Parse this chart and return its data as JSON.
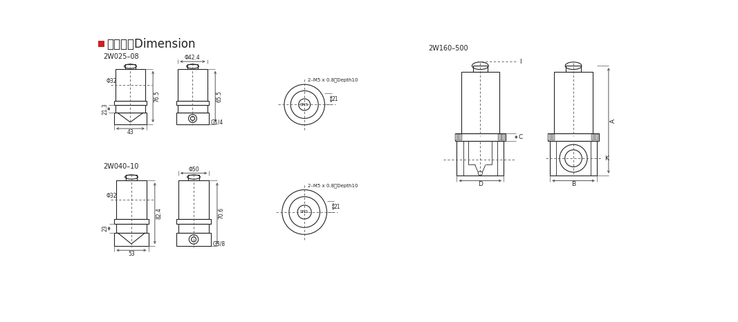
{
  "title_square_color": "#cc2222",
  "bg_color": "#ffffff",
  "line_color": "#222222",
  "dim_color": "#555555",
  "text_color": "#222222",
  "models": [
    "2W025–08",
    "2W040–10",
    "2W160–500"
  ],
  "title_text": "外型尺寸Dimension",
  "ann_top": {
    "phi42": "Φ42.4",
    "h65": "65.5",
    "h76": "76.5",
    "phi32": "Φ32",
    "w43": "43",
    "h213": "21.3",
    "g14": "G1/4",
    "threads": "2–M5 x 0.8深Depth10",
    "dim21": "21"
  },
  "ann_bot": {
    "phi50": "Φ50",
    "h70": "70.6",
    "h82": "82.4",
    "phi32": "Φ32",
    "w53": "53",
    "h23": "23",
    "g38": "G3/8",
    "threads": "2–M5 x 0.8深Depth10",
    "dim21": "21"
  },
  "ann_right": {
    "A": "A",
    "B": "B",
    "C": "C",
    "D": "D",
    "K": "K",
    "I": "I"
  }
}
